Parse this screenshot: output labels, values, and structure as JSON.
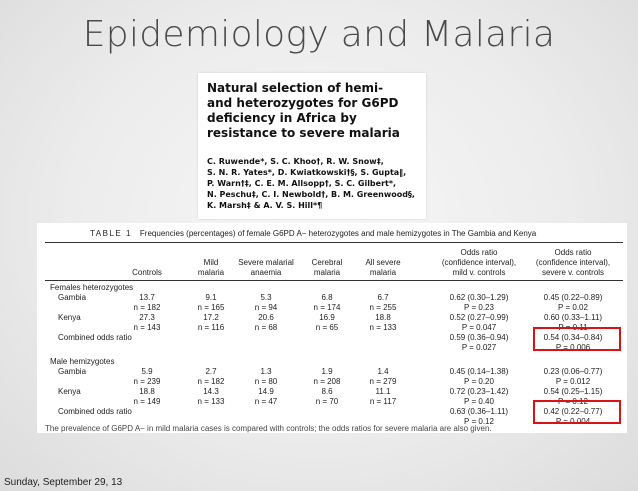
{
  "slide": {
    "title": "Epidemiology and Malaria",
    "date": "Sunday, September 29, 13"
  },
  "paper": {
    "title_lines": [
      "Natural selection of hemi-",
      "and heterozygotes for G6PD",
      "deficiency in Africa by",
      "resistance to severe malaria"
    ],
    "author_lines": [
      "C. Ruwende*, S. C. Khoo†, R. W. Snow‡,",
      "S. N. R. Yates*, D. Kwiatkowski†§, S. Gupta‖,",
      "P. Warn†‡, C. E. M. Allsopp†, S. C. Gilbert*,",
      "N. Peschu‡, C. I. Newbold†, B. M. Greenwood§,",
      "K. Marsh‡ & A. V. S. Hill*¶"
    ]
  },
  "table": {
    "label": "TABLE 1",
    "caption": "Frequencies (percentages) of female G6PD A− heterozygotes and male hemizygotes in The Gambia and Kenya",
    "headers": [
      {
        "lines": [
          "",
          "Controls"
        ]
      },
      {
        "lines": [
          "Mild",
          "malaria"
        ]
      },
      {
        "lines": [
          "Severe malarial",
          "anaemia"
        ]
      },
      {
        "lines": [
          "Cerebral",
          "malaria"
        ]
      },
      {
        "lines": [
          "All severe",
          "malaria"
        ]
      },
      {
        "lines": [
          "Odds ratio",
          "(confidence interval),",
          "mild v. controls"
        ]
      },
      {
        "lines": [
          "Odds ratio",
          "(confidence interval),",
          "severe v. controls"
        ]
      }
    ],
    "sections": [
      {
        "title": "Females heterozygotes",
        "rows": [
          {
            "label": "Gambia",
            "pct": [
              "13.7",
              "9.1",
              "5.3",
              "6.8",
              "6.7"
            ],
            "n": [
              "n = 182",
              "n = 165",
              "n = 94",
              "n = 174",
              "n = 255"
            ],
            "or_mild": [
              "0.62 (0.30–1.29)",
              "P = 0.23"
            ],
            "or_severe": [
              "0.45 (0.22–0.89)",
              "P = 0.02"
            ]
          },
          {
            "label": "Kenya",
            "pct": [
              "27.3",
              "17.2",
              "20.6",
              "16.9",
              "18.8"
            ],
            "n": [
              "n = 143",
              "n = 116",
              "n = 68",
              "n = 65",
              "n = 133"
            ],
            "or_mild": [
              "0.52 (0.27–0.99)",
              "P = 0.047"
            ],
            "or_severe": [
              "0.60 (0.33–1.11)",
              "P = 0.11"
            ]
          }
        ],
        "combined": {
          "label": "Combined odds ratio",
          "or_mild": [
            "0.59 (0.36–0.94)",
            "P = 0.027"
          ],
          "or_severe": [
            "0.54 (0.34–0.84)",
            "P = 0.006"
          ]
        }
      },
      {
        "title": "Male hemizygotes",
        "rows": [
          {
            "label": "Gambia",
            "pct": [
              "5.9",
              "2.7",
              "1.3",
              "1.9",
              "1.4"
            ],
            "n": [
              "n = 239",
              "n = 182",
              "n = 80",
              "n = 208",
              "n = 279"
            ],
            "or_mild": [
              "0.45 (0.14–1.38)",
              "P = 0.20"
            ],
            "or_severe": [
              "0.23 (0.06–0.77)",
              "P = 0.012"
            ]
          },
          {
            "label": "Kenya",
            "pct": [
              "18.8",
              "14.3",
              "14.9",
              "8.6",
              "11.1"
            ],
            "n": [
              "n = 149",
              "n = 133",
              "n = 47",
              "n = 70",
              "n = 117"
            ],
            "or_mild": [
              "0.72 (0.23–1.42)",
              "P = 0.40"
            ],
            "or_severe": [
              "0.54 (0.25–1.15)",
              "P = 0.12"
            ]
          }
        ],
        "combined": {
          "label": "Combined odds ratio",
          "or_mild": [
            "0.63 (0.36–1.11)",
            "P = 0.12"
          ],
          "or_severe": [
            "0.42 (0.22–0.77)",
            "P = 0.004"
          ]
        }
      }
    ],
    "footnote": "The prevalence of G6PD A− in mild malaria cases is compared with controls; the odds ratios for severe malaria are also given."
  }
}
